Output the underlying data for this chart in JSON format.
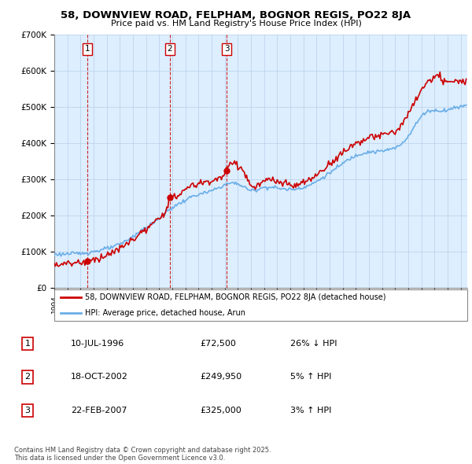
{
  "title": "58, DOWNVIEW ROAD, FELPHAM, BOGNOR REGIS, PO22 8JA",
  "subtitle": "Price paid vs. HM Land Registry's House Price Index (HPI)",
  "legend_line1": "58, DOWNVIEW ROAD, FELPHAM, BOGNOR REGIS, PO22 8JA (detached house)",
  "legend_line2": "HPI: Average price, detached house, Arun",
  "transactions": [
    {
      "num": 1,
      "date": "10-JUL-1996",
      "price": "£72,500",
      "pct": "26% ↓ HPI",
      "year": 1996.54,
      "value": 72500
    },
    {
      "num": 2,
      "date": "18-OCT-2002",
      "price": "£249,950",
      "pct": "5% ↑ HPI",
      "year": 2002.8,
      "value": 249950
    },
    {
      "num": 3,
      "date": "22-FEB-2007",
      "price": "£325,000",
      "pct": "3% ↑ HPI",
      "year": 2007.14,
      "value": 325000
    }
  ],
  "copyright": "Contains HM Land Registry data © Crown copyright and database right 2025.\nThis data is licensed under the Open Government Licence v3.0.",
  "hpi_color": "#6aaee8",
  "price_color": "#cc0000",
  "bg_color": "#ddeeff",
  "xmin": 1994.0,
  "xmax": 2025.5,
  "ymin": 0,
  "ymax": 700000,
  "yticks": [
    0,
    100000,
    200000,
    300000,
    400000,
    500000,
    600000,
    700000
  ],
  "ylabels": [
    "£0",
    "£100K",
    "£200K",
    "£300K",
    "£400K",
    "£500K",
    "£600K",
    "£700K"
  ]
}
